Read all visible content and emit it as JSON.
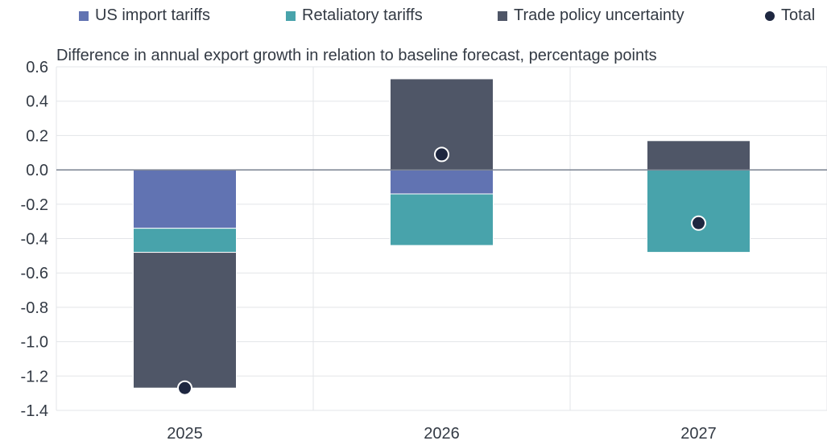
{
  "chart_data": {
    "type": "bar",
    "stacked": true,
    "subtitle": "Difference in annual export growth in relation to baseline forecast, percentage points",
    "categories": [
      "2025",
      "2026",
      "2027"
    ],
    "series": [
      {
        "name": "US import tariffs",
        "color": "#6173b2",
        "values": [
          -0.34,
          -0.14,
          0.0
        ]
      },
      {
        "name": "Retaliatory tariffs",
        "color": "#48a3ab",
        "values": [
          -0.14,
          -0.3,
          -0.48
        ]
      },
      {
        "name": "Trade policy uncertainty",
        "color": "#4f5667",
        "values": [
          -0.79,
          0.53,
          0.17
        ]
      }
    ],
    "total": {
      "name": "Total",
      "color": "#1e2740",
      "values": [
        -1.27,
        0.09,
        -0.31
      ]
    },
    "ylim": [
      -1.4,
      0.6
    ],
    "yticks": [
      "0.6",
      "0.4",
      "0.2",
      "0.0",
      "-0.2",
      "-0.4",
      "-0.6",
      "-0.8",
      "-1.0",
      "-1.2",
      "-1.4"
    ],
    "legend_position": "top",
    "grid": true
  }
}
